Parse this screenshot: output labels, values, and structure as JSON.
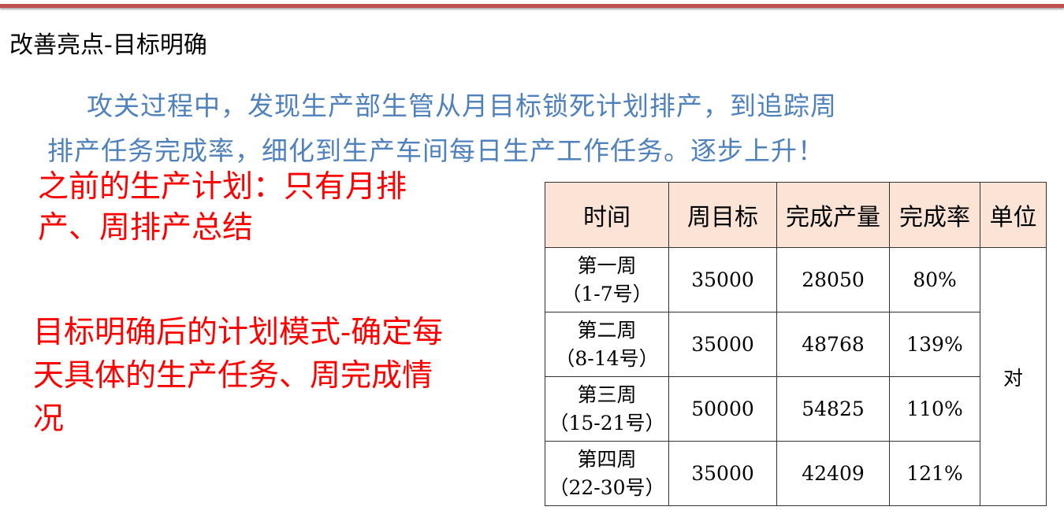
{
  "slide": {
    "title": "改善亮点-目标明确",
    "intro_line1": "攻关过程中，发现生产部生管从月目标锁死计划排产，到追踪周",
    "intro_line2": "排产任务完成率，细化到生产车间每日生产工作任务。逐步上升！",
    "before_line1": "之前的生产计划：只有月排",
    "before_line2": "产、周排产总结",
    "after_line1": "目标明确后的计划模式-确定每",
    "after_line2": "天具体的生产任务、周完成情",
    "after_line3": "况",
    "accent_color": "#c0504d"
  },
  "table": {
    "headers": [
      "时间",
      "周目标",
      "完成产量",
      "完成率",
      "单位"
    ],
    "rows": [
      {
        "week": "第一周",
        "range": "（1-7号）",
        "target": "35000",
        "output": "28050",
        "rate": "80%"
      },
      {
        "week": "第二周",
        "range": "（8-14号）",
        "target": "35000",
        "output": "48768",
        "rate": "139%"
      },
      {
        "week": "第三周",
        "range": "（15-21号）",
        "target": "50000",
        "output": "54825",
        "rate": "110%"
      },
      {
        "week": "第四周",
        "range": "（22-30号）",
        "target": "35000",
        "output": "42409",
        "rate": "121%"
      }
    ],
    "unit": "对"
  }
}
